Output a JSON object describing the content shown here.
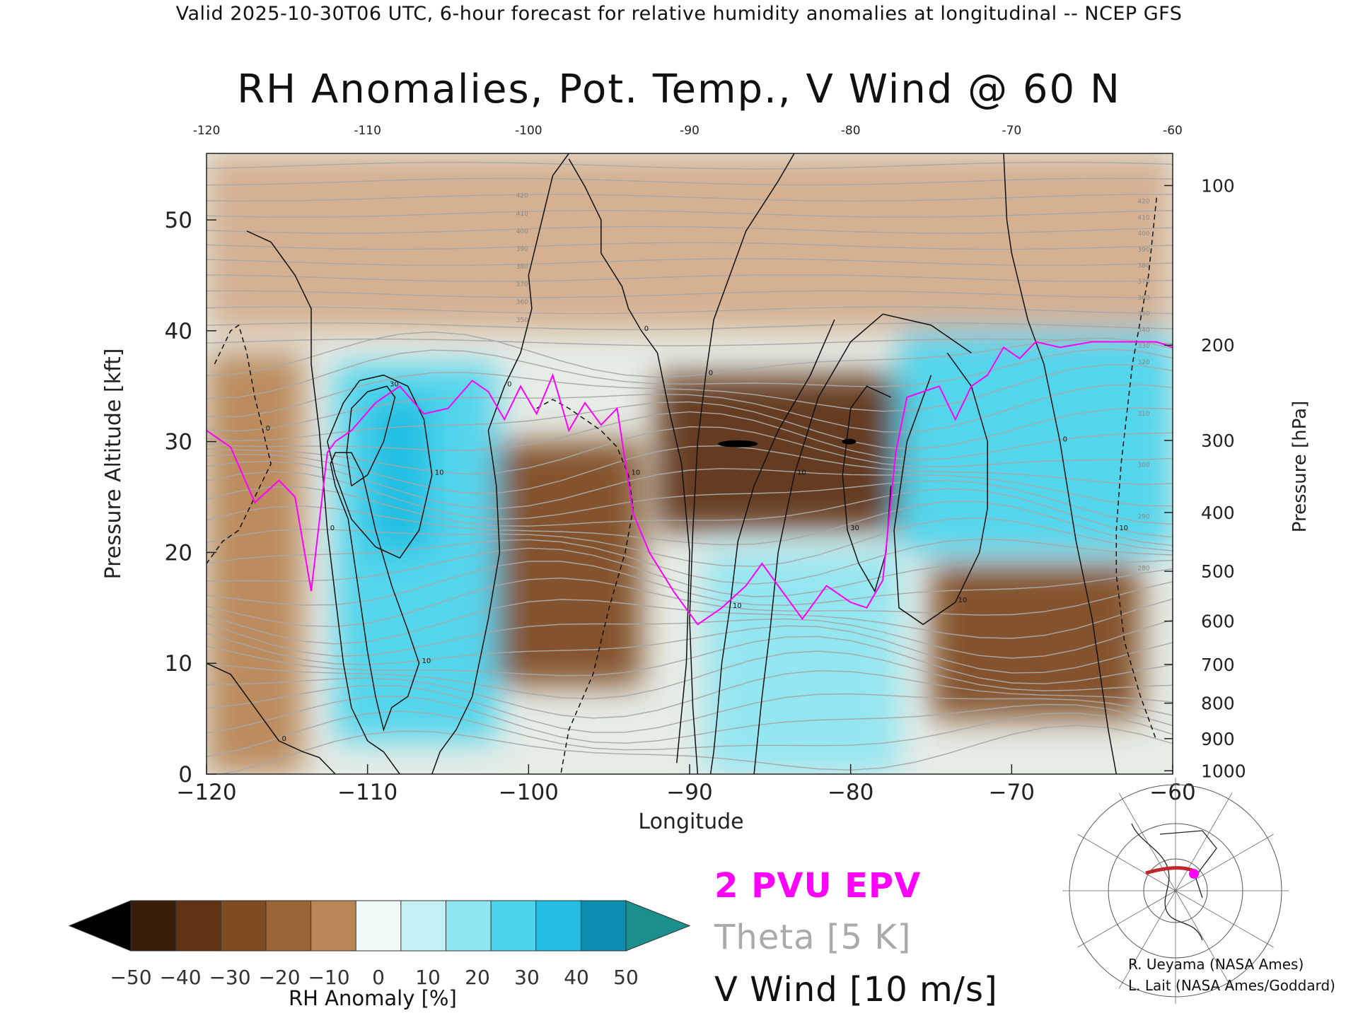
{
  "header": {
    "text": "Valid 2025-10-30T06 UTC, 6-hour forecast for relative humidity anomalies at longitudinal -- NCEP GFS"
  },
  "chart_data": {
    "type": "heatmap",
    "title": "RH Anomalies, Pot. Temp., V Wind @ 60 N",
    "xlabel": "Longitude",
    "ylabel": "Pressure Altitude [kft]",
    "y2label": "Pressure [hPa]",
    "xlim": [
      -120,
      -60
    ],
    "ylim": [
      0,
      56
    ],
    "x_ticks": [
      -120,
      -110,
      -100,
      -90,
      -80,
      -70,
      -60
    ],
    "x_tick_labels": [
      "−120",
      "−110",
      "−100",
      "−90",
      "−80",
      "−70",
      "−60"
    ],
    "top_x_tick_labels": [
      "-120",
      "-110",
      "-100",
      "-90",
      "-80",
      "-70",
      "-60"
    ],
    "y_ticks": [
      0,
      10,
      20,
      30,
      40,
      50
    ],
    "y_tick_labels": [
      "0",
      "10",
      "20",
      "30",
      "40",
      "50"
    ],
    "pressure_ticks": [
      {
        "hPa": 100,
        "label": "100",
        "kft": 53.1
      },
      {
        "hPa": 200,
        "label": "200",
        "kft": 38.7
      },
      {
        "hPa": 300,
        "label": "300",
        "kft": 30.1
      },
      {
        "hPa": 400,
        "label": "400",
        "kft": 23.6
      },
      {
        "hPa": 500,
        "label": "500",
        "kft": 18.3
      },
      {
        "hPa": 600,
        "label": "600",
        "kft": 13.8
      },
      {
        "hPa": 700,
        "label": "700",
        "kft": 9.9
      },
      {
        "hPa": 800,
        "label": "800",
        "kft": 6.4
      },
      {
        "hPa": 900,
        "label": "900",
        "kft": 3.2
      },
      {
        "hPa": 1000,
        "label": "1000",
        "kft": 0.3
      }
    ],
    "grid": false,
    "colorbar": {
      "label": "RH Anomaly [%]",
      "tick_labels": [
        "−50",
        "−40",
        "−30",
        "−20",
        "−10",
        "0",
        "10",
        "20",
        "30",
        "40",
        "50"
      ],
      "levels": [
        -50,
        -40,
        -30,
        -20,
        -10,
        0,
        10,
        20,
        30,
        40,
        50
      ],
      "colors": [
        "#3a1e0a",
        "#5e3414",
        "#7e4b22",
        "#9c6538",
        "#b98656",
        "#d4ad8c",
        "#f1f8f8",
        "#c3f0f5",
        "#8fe6f1",
        "#4cd4ec",
        "#23bfe3",
        "#0d8db0"
      ],
      "under_color": "#000000",
      "over_color": "#1a8f8b"
    },
    "rh_anomaly_regions": [
      {
        "lon": [
          -120,
          -114
        ],
        "kft": [
          0,
          38
        ],
        "anomaly": -20
      },
      {
        "lon": [
          -112,
          -102
        ],
        "kft": [
          3,
          37
        ],
        "anomaly": 30
      },
      {
        "lon": [
          -110,
          -106
        ],
        "kft": [
          20,
          34
        ],
        "anomaly": 45
      },
      {
        "lon": [
          -102,
          -93
        ],
        "kft": [
          8,
          30
        ],
        "anomaly": -35
      },
      {
        "lon": [
          -92,
          -77
        ],
        "kft": [
          22,
          36
        ],
        "anomaly": -45
      },
      {
        "lon": [
          -89,
          -77
        ],
        "kft": [
          0,
          20
        ],
        "anomaly": 25
      },
      {
        "lon": [
          -77,
          -60
        ],
        "kft": [
          20,
          40
        ],
        "anomaly": 35
      },
      {
        "lon": [
          -75,
          -62
        ],
        "kft": [
          5,
          19
        ],
        "anomaly": -35
      },
      {
        "lon": [
          -120,
          -60
        ],
        "kft": [
          40,
          56
        ],
        "anomaly": -5
      }
    ],
    "series": [
      {
        "name": "2 PVU EPV",
        "color": "#ff00ff",
        "x": [
          -120,
          -118.5,
          -117,
          -115.5,
          -114.5,
          -113.5,
          -112.5,
          -112,
          -111,
          -109.5,
          -108,
          -106.5,
          -105,
          -103.5,
          -102.5,
          -101.5,
          -100.5,
          -99.5,
          -98.5,
          -97.5,
          -96.5,
          -95.5,
          -94.5,
          -93.5,
          -92.5,
          -91,
          -89.5,
          -88,
          -86.5,
          -85.5,
          -84.5,
          -83,
          -81.5,
          -80,
          -79,
          -78,
          -77.2,
          -76.5,
          -75.5,
          -74.5,
          -73.5,
          -72.5,
          -71.5,
          -70.5,
          -69.5,
          -68.5,
          -67,
          -65,
          -63,
          -61,
          -60
        ],
        "y": [
          31,
          29.5,
          24.5,
          26.5,
          25,
          16.5,
          29,
          30,
          31,
          33.5,
          35,
          32.5,
          33,
          35.5,
          34.5,
          32,
          35,
          32.5,
          36,
          31,
          33.5,
          31.5,
          33,
          23.5,
          20,
          16.5,
          13.5,
          15,
          17,
          19,
          17,
          14,
          17,
          15.5,
          15,
          17.5,
          29,
          34,
          34.5,
          35,
          32,
          35,
          36,
          38.5,
          37.5,
          39,
          38.5,
          39,
          39,
          39,
          38.5
        ]
      }
    ],
    "v_wind_contours": [
      {
        "label": "10",
        "dashed": false,
        "x": [
          -112.5,
          -111.5,
          -110.5,
          -109,
          -107.5,
          -106.5,
          -106,
          -106.8,
          -108,
          -109.5,
          -111,
          -112,
          -112.5
        ],
        "y": [
          30,
          33.5,
          35.5,
          36,
          35,
          32,
          27,
          22,
          19.5,
          20.5,
          23,
          27,
          30
        ]
      },
      {
        "label": "30",
        "dashed": false,
        "x": [
          -111,
          -110,
          -109,
          -108.3,
          -108.8,
          -110,
          -111,
          -111.3,
          -111
        ],
        "y": [
          26,
          27,
          30,
          34,
          35,
          34.5,
          33,
          29,
          26
        ]
      },
      {
        "label": "0",
        "dashed": false,
        "x": [
          -117.5,
          -116,
          -114.5,
          -113.5,
          -113.5,
          -113,
          -112.5,
          -112,
          -111.5,
          -111,
          -110,
          -109,
          -108
        ],
        "y": [
          49,
          48,
          45,
          42,
          37,
          31,
          22,
          16,
          10,
          6,
          3,
          2,
          0
        ]
      },
      {
        "label": "0",
        "dashed": false,
        "x": [
          -120,
          -118.5,
          -117,
          -115.5,
          -114,
          -113,
          -112
        ],
        "y": [
          10,
          9,
          6,
          3,
          2,
          1.5,
          0
        ]
      },
      {
        "label": "10",
        "dashed": false,
        "x": [
          -112,
          -111.2,
          -110.5,
          -110,
          -109.5,
          -109,
          -108.5,
          -107.5,
          -106.8,
          -107.5,
          -108.5,
          -109.5,
          -110.3,
          -111,
          -112,
          -112.3,
          -112
        ],
        "y": [
          26,
          23,
          16,
          11,
          7,
          4,
          6,
          7,
          10,
          13,
          17,
          22,
          27,
          29,
          29,
          28,
          26
        ]
      },
      {
        "label": "0",
        "dashed": false,
        "x": [
          -106,
          -105.5,
          -104.5,
          -103.5,
          -102.5,
          -101.8,
          -102,
          -102.5,
          -101.5,
          -100.5,
          -99.8,
          -100,
          -99.5,
          -99,
          -98.5,
          -97.5
        ],
        "y": [
          0,
          2,
          4,
          7,
          14,
          20,
          26,
          31,
          35,
          38,
          42,
          45,
          48,
          51,
          54,
          56
        ]
      },
      {
        "label": "0",
        "dashed": false,
        "x": [
          -97.5,
          -96.5,
          -95.5,
          -95.5,
          -94.2,
          -93.8,
          -93,
          -92,
          -91.3,
          -90.5,
          -90,
          -90.2,
          -90.8
        ],
        "y": [
          55.5,
          53,
          50,
          47,
          44,
          42,
          40,
          38,
          33,
          28,
          20,
          10,
          1
        ]
      },
      {
        "label": "10",
        "dashed": true,
        "x": [
          -99.5,
          -98.5,
          -97.5,
          -96.5,
          -95.5,
          -94.5,
          -93.8,
          -93.5,
          -94,
          -95,
          -96,
          -97.5,
          -98
        ],
        "y": [
          33,
          33.8,
          33,
          32,
          31,
          29.5,
          27,
          24,
          20,
          15,
          9,
          4,
          0
        ]
      },
      {
        "label": "0",
        "dashed": false,
        "x": [
          -83.5,
          -84.5,
          -86.5,
          -87.5,
          -88.5,
          -89,
          -89.5,
          -89.8,
          -90,
          -89.8,
          -89.5
        ],
        "y": [
          56,
          53.5,
          49,
          45,
          41,
          36,
          30,
          22,
          14,
          6,
          0
        ]
      },
      {
        "label": "10",
        "dashed": false,
        "x": [
          -81,
          -82.5,
          -84.5,
          -86,
          -87,
          -87.5,
          -88,
          -88.3,
          -88.5,
          -88.7
        ],
        "y": [
          41,
          36,
          31,
          26,
          21,
          15,
          10,
          5,
          2,
          0
        ]
      },
      {
        "label": "10",
        "dashed": false,
        "x": [
          -72.5,
          -75,
          -78,
          -80,
          -82,
          -83.5,
          -84.5,
          -85,
          -85.5,
          -86
        ],
        "y": [
          38,
          40.5,
          41.5,
          39,
          34,
          27,
          20,
          13,
          7,
          0
        ]
      },
      {
        "label": "30",
        "dashed": false,
        "x": [
          -77.5,
          -79,
          -80,
          -80.5,
          -80.2,
          -79.5,
          -78.5,
          -77.8,
          -77.5
        ],
        "y": [
          34,
          35,
          33,
          27,
          22,
          19,
          16.5,
          20,
          26
        ]
      },
      {
        "label": "10",
        "dashed": false,
        "x": [
          -74,
          -72.5,
          -71.5,
          -71.5,
          -72,
          -73.5,
          -75.5,
          -77,
          -77.3,
          -76.5,
          -75
        ],
        "y": [
          38,
          35,
          30,
          24,
          20,
          15.5,
          13.5,
          15,
          22,
          30,
          36
        ]
      },
      {
        "label": "0",
        "dashed": false,
        "x": [
          -70.5,
          -70.3,
          -70,
          -69.5,
          -69,
          -68,
          -67,
          -66,
          -65,
          -64.5,
          -64,
          -63.5
        ],
        "y": [
          56,
          50,
          47,
          44,
          41,
          37,
          30,
          21,
          14,
          9,
          4,
          0
        ]
      },
      {
        "label": "10",
        "dashed": true,
        "x": [
          -61,
          -61.5,
          -62.5,
          -63.2,
          -63.5,
          -63.5,
          -63,
          -62,
          -61
        ],
        "y": [
          52,
          45,
          37,
          28,
          22,
          18,
          12,
          7,
          3
        ]
      },
      {
        "label": "0",
        "dashed": true,
        "x": [
          -119.5,
          -118.5,
          -118,
          -117.5,
          -117,
          -116.5,
          -116,
          -117,
          -118,
          -119,
          -120
        ],
        "y": [
          37,
          40,
          40.5,
          38,
          34,
          31,
          28,
          25,
          22,
          21,
          19
        ]
      }
    ],
    "theta_contour_labels": [
      "420",
      "410",
      "400",
      "390",
      "380",
      "370",
      "360",
      "350",
      "340",
      "330",
      "320",
      "310",
      "300",
      "290",
      "280"
    ],
    "map_inset": {
      "description_visible": false
    }
  },
  "legend": {
    "epv": "2 PVU EPV",
    "theta": "Theta [5 K]",
    "vwind": "V Wind [10 m/s]"
  },
  "credits": {
    "line1": "R. Ueyama (NASA Ames)",
    "line2": "L. Lait (NASA Ames/Goddard)"
  },
  "colors": {
    "epv": "#ff00ff",
    "theta": "#aaaaaa",
    "map_track": "#c0262e",
    "map_point": "#ff00ff"
  }
}
